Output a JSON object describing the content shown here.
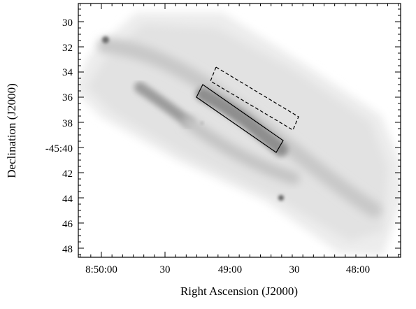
{
  "figure": {
    "xlabel": "Right Ascension (J2000)",
    "ylabel": "Declination (J2000)",
    "x_ticks": [
      "8:50:00",
      "30",
      "49:00",
      "30",
      "48:00"
    ],
    "y_ticks": [
      "30",
      "32",
      "34",
      "36",
      "38",
      "-45:40",
      "42",
      "44",
      "46",
      "48"
    ],
    "image_colormap": "grayscale (dark = bright emission)",
    "regions": [
      {
        "name": "solid-box",
        "line_style": "solid"
      },
      {
        "name": "dashed-box",
        "line_style": "dashed"
      }
    ],
    "colors": {
      "frame": "#000000",
      "background": "#ffffff",
      "emission_faint": "#d8d8d8",
      "emission_bright": "#555555"
    }
  }
}
